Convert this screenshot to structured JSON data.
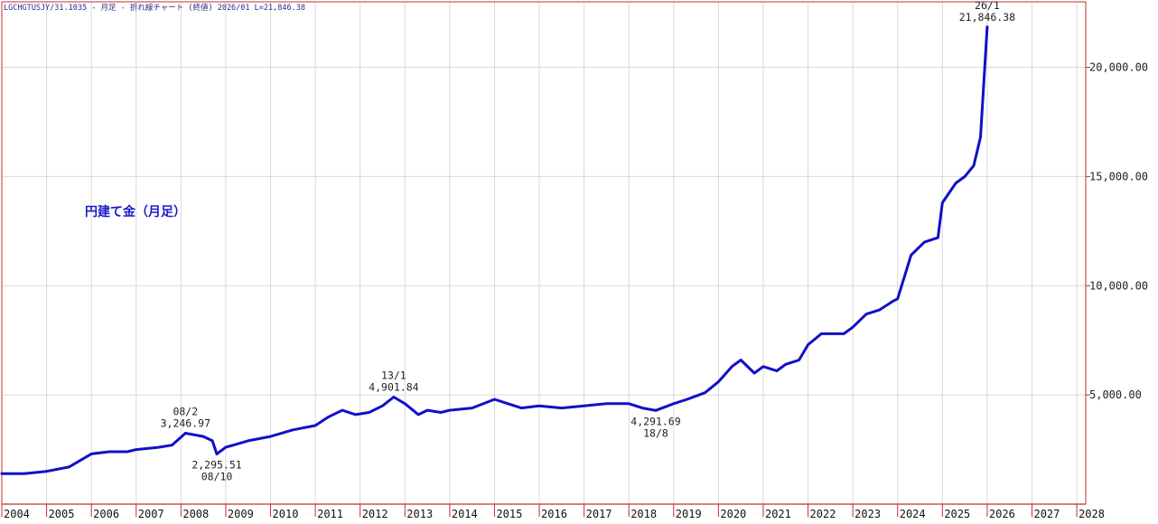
{
  "header": "LGCHGTUSJY/31.1035 - 月足 - 折れ線チャート (終値) 2026/01 L=21,846.38",
  "chart_data": {
    "type": "line",
    "title": "円建て金（月足）",
    "xlabel": "",
    "ylabel": "",
    "xlim": [
      2004.0,
      2028.2
    ],
    "ylim": [
      0,
      23000
    ],
    "y_ticks": [
      5000,
      10000,
      15000,
      20000
    ],
    "y_tick_labels": [
      "5,000.00",
      "10,000.00",
      "15,000.00",
      "20,000.00"
    ],
    "x_ticks": [
      2004,
      2005,
      2006,
      2007,
      2008,
      2009,
      2010,
      2011,
      2012,
      2013,
      2014,
      2015,
      2016,
      2017,
      2018,
      2019,
      2020,
      2021,
      2022,
      2023,
      2024,
      2025,
      2026,
      2027,
      2028
    ],
    "x_tick_labels": [
      "2004",
      "2005",
      "2006",
      "2007",
      "2008",
      "2009",
      "2010",
      "2011",
      "2012",
      "2013",
      "2014",
      "2015",
      "2016",
      "2017",
      "2018",
      "2019",
      "2020",
      "2021",
      "2022",
      "2023",
      "2024",
      "2025",
      "2026",
      "2027",
      "2028"
    ],
    "grid": true,
    "line_color": "#1010c8",
    "series": [
      {
        "x": [
          2004.0,
          2004.5,
          2005.0,
          2005.5,
          2006.0,
          2006.4,
          2006.8,
          2007.0,
          2007.5,
          2007.8,
          2008.1,
          2008.5,
          2008.7,
          2008.8,
          2009.0,
          2009.5,
          2010.0,
          2010.5,
          2011.0,
          2011.3,
          2011.6,
          2011.9,
          2012.2,
          2012.5,
          2012.75,
          2013.0,
          2013.3,
          2013.5,
          2013.8,
          2014.0,
          2014.5,
          2015.0,
          2015.3,
          2015.6,
          2016.0,
          2016.5,
          2017.0,
          2017.5,
          2018.0,
          2018.3,
          2018.6,
          2019.0,
          2019.3,
          2019.7,
          2020.0,
          2020.3,
          2020.5,
          2020.8,
          2021.0,
          2021.3,
          2021.5,
          2021.8,
          2022.0,
          2022.3,
          2022.5,
          2022.8,
          2023.0,
          2023.3,
          2023.6,
          2023.9,
          2024.0,
          2024.3,
          2024.6,
          2024.9,
          2025.0,
          2025.3,
          2025.5,
          2025.7,
          2025.85,
          2026.0
        ],
        "y": [
          1400,
          1400,
          1500,
          1700,
          2300,
          2400,
          2400,
          2500,
          2600,
          2700,
          3246.97,
          3100,
          2900,
          2295.51,
          2600,
          2900,
          3100,
          3400,
          3600,
          4000,
          4300,
          4100,
          4200,
          4500,
          4901.84,
          4600,
          4100,
          4300,
          4200,
          4300,
          4400,
          4800,
          4600,
          4400,
          4500,
          4400,
          4500,
          4600,
          4600,
          4400,
          4291.69,
          4600,
          4800,
          5100,
          5600,
          6300,
          6600,
          6000,
          6300,
          6100,
          6400,
          6600,
          7300,
          7800,
          7800,
          7800,
          8100,
          8700,
          8900,
          9300,
          9400,
          11400,
          12000,
          12200,
          13800,
          14700,
          15000,
          15500,
          16800,
          21846.38
        ]
      }
    ],
    "annotations": [
      {
        "x": 2008.1,
        "y": 3246.97,
        "label_date": "08/2",
        "label_value": "3,246.97",
        "position": "above"
      },
      {
        "x": 2008.8,
        "y": 2295.51,
        "label_value": "2,295.51",
        "label_date": "08/10",
        "position": "below"
      },
      {
        "x": 2012.75,
        "y": 4901.84,
        "label_date": "13/1",
        "label_value": "4,901.84",
        "position": "above"
      },
      {
        "x": 2018.6,
        "y": 4291.69,
        "label_value": "4,291.69",
        "label_date": "18/8",
        "position": "below"
      },
      {
        "x": 2026.0,
        "y": 21846.38,
        "label_date": "26/1",
        "label_value": "21,846.38",
        "position": "above"
      }
    ]
  }
}
